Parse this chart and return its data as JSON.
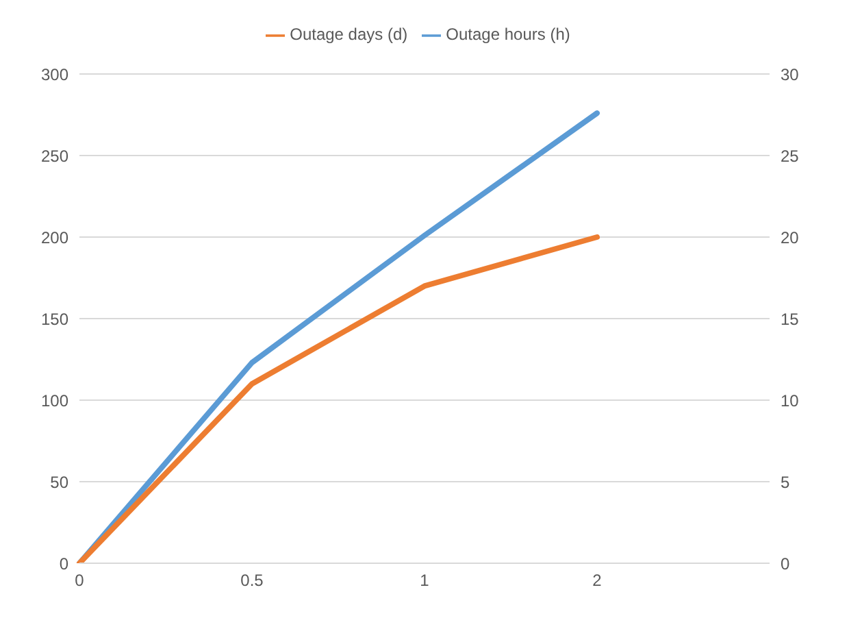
{
  "chart_data": {
    "type": "line",
    "categories": [
      "0",
      "0.5",
      "1",
      "2",
      null
    ],
    "series": [
      {
        "name": "Outage hours (h)",
        "color": "#5b9bd5",
        "values": [
          0,
          123,
          201,
          276,
          null
        ]
      },
      {
        "name": "Outage days (d)",
        "color": "#ed7d31",
        "values": [
          0,
          11,
          17,
          20,
          null
        ],
        "axis": "y2"
      }
    ],
    "ylim": [
      0,
      300
    ],
    "yticks": [
      0,
      50,
      100,
      150,
      200,
      250,
      300
    ],
    "y2lim": [
      0,
      30
    ],
    "y2ticks": [
      0,
      5,
      10,
      15,
      20,
      25,
      30
    ],
    "grid": "y",
    "legend": "top",
    "marker": "none",
    "line_style": "solid"
  }
}
